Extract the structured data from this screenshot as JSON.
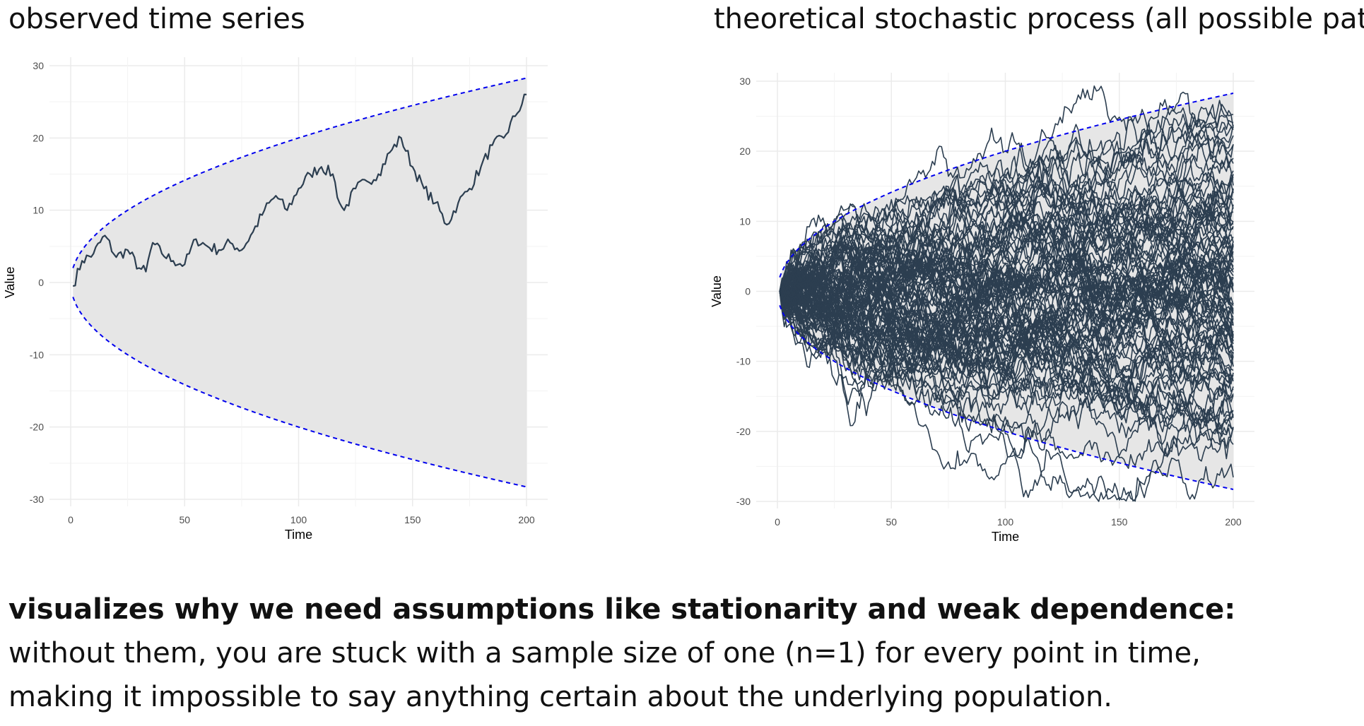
{
  "titles": {
    "left": "observed time series",
    "right": "theoretical stochastic process (all possible paths)"
  },
  "caption": {
    "bold": "visualizes why we need assumptions like stationarity and weak dependence:",
    "line1": "without them, you are stuck with a sample size of one (n=1) for every point in time,",
    "line2": "making it impossible to say anything certain about the underlying population."
  },
  "colors": {
    "line": "#2c3e50",
    "envelope": "#0000ee",
    "band": "#e6e6e6",
    "grid": "#ebebeb"
  },
  "chart_data": [
    {
      "type": "line",
      "title": "observed time series",
      "xlabel": "Time",
      "ylabel": "Value",
      "xlim": [
        0,
        200
      ],
      "ylim": [
        -30,
        30
      ],
      "xticks": [
        0,
        50,
        100,
        150,
        200
      ],
      "yticks": [
        -30,
        -20,
        -10,
        0,
        10,
        20,
        30
      ],
      "grid": true,
      "band": {
        "description_formula": "±2·sqrt(t)",
        "from": 1,
        "to": 200,
        "style": "dashed"
      },
      "series": [
        {
          "x": [
            1,
            5,
            10,
            15,
            20,
            25,
            30,
            33,
            36,
            40,
            45,
            50,
            55,
            60,
            65,
            70,
            75,
            80,
            85,
            90,
            95,
            100,
            105,
            110,
            115,
            118,
            120,
            125,
            130,
            135,
            140,
            145,
            150,
            155,
            160,
            165,
            170,
            175,
            180,
            185,
            190,
            195,
            200
          ],
          "y": [
            -0.5,
            3,
            4,
            6.5,
            3.5,
            4.5,
            2,
            1.5,
            5.5,
            4,
            3,
            2.5,
            6,
            5,
            4.5,
            5.5,
            4.5,
            7,
            10,
            12,
            10,
            13,
            15,
            16,
            15,
            11,
            10,
            13,
            14,
            15,
            18,
            20,
            16,
            13,
            11,
            8,
            11,
            13,
            16,
            19,
            20,
            23,
            26
          ]
        }
      ]
    },
    {
      "type": "line",
      "title": "theoretical stochastic process (all possible paths)",
      "xlabel": "Time",
      "ylabel": "Value",
      "xlim": [
        0,
        200
      ],
      "ylim": [
        -30,
        30
      ],
      "xticks": [
        0,
        50,
        100,
        150,
        200
      ],
      "yticks": [
        -30,
        -20,
        -10,
        0,
        10,
        20,
        30
      ],
      "grid": true,
      "band": {
        "description_formula": "±2·sqrt(t)",
        "from": 1,
        "to": 200,
        "style": "dashed"
      },
      "paths_shown": 100
    }
  ]
}
